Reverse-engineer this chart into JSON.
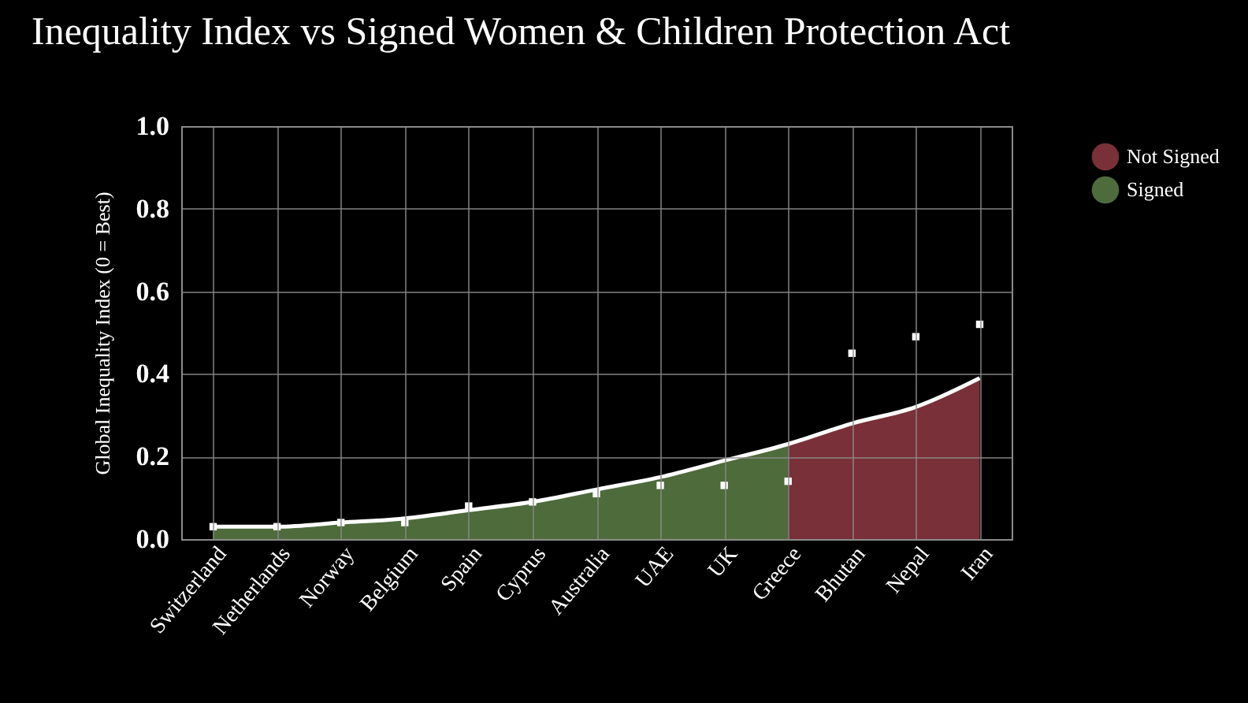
{
  "chart_data": {
    "type": "area",
    "title": "Inequality Index vs Signed Women & Children Protection Act",
    "ylabel": "Global Inequality Index (0 = Best)",
    "categories": [
      "Switzerland",
      "Netherlands",
      "Norway",
      "Belgium",
      "Spain",
      "Cyprus",
      "Australia",
      "UAE",
      "UK",
      "Greece",
      "Bhutan",
      "Nepal",
      "Iran"
    ],
    "series": [
      {
        "name": "Not Signed",
        "color": "#7a3038",
        "values": [
          null,
          null,
          null,
          null,
          null,
          null,
          null,
          null,
          null,
          0.23,
          0.28,
          0.32,
          0.39
        ]
      },
      {
        "name": "Signed",
        "color": "#4e6b3c",
        "values": [
          0.03,
          0.03,
          0.04,
          0.05,
          0.07,
          0.09,
          0.12,
          0.15,
          0.19,
          0.23,
          null,
          null,
          null
        ]
      },
      {
        "type": "line",
        "color": "#ffffff",
        "values": [
          0.03,
          0.03,
          0.04,
          0.05,
          0.07,
          0.09,
          0.12,
          0.15,
          0.19,
          0.23,
          0.28,
          0.32,
          0.39
        ]
      },
      {
        "type": "scatter",
        "color": "#ffffff",
        "marker": "square",
        "values": [
          0.03,
          0.03,
          0.04,
          0.04,
          0.08,
          0.09,
          0.11,
          0.13,
          0.13,
          0.14,
          0.45,
          0.49,
          0.52
        ]
      }
    ],
    "ylim": [
      0,
      1
    ],
    "yticks": [
      {
        "value": 0,
        "label": "0.0"
      },
      {
        "value": 0.2,
        "label": "0.2"
      },
      {
        "value": 0.4,
        "label": "0.4"
      },
      {
        "value": 0.6,
        "label": "0.6"
      },
      {
        "value": 0.8,
        "label": "0.8"
      },
      {
        "value": 1,
        "label": "1.0"
      }
    ],
    "grid": true,
    "legend": "right"
  }
}
